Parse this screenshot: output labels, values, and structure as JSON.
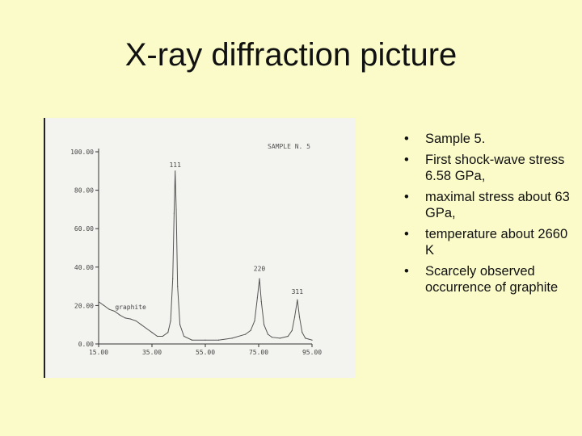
{
  "slide": {
    "title": "X-ray diffraction picture"
  },
  "bullets": [
    "Sample 5.",
    "First shock-wave stress 6.58 GPa,",
    "maximal stress about 63 GPa,",
    "temperature about 2660 K",
    "Scarcely observed occurrence of graphite"
  ],
  "chart_data": {
    "type": "line",
    "title": "",
    "xlabel": "",
    "ylabel": "",
    "xlim": [
      15,
      95
    ],
    "ylim": [
      0,
      100
    ],
    "x_ticks": [
      "15.00",
      "35.00",
      "55.00",
      "75.00",
      "95.00"
    ],
    "x_tick_values": [
      15,
      35,
      55,
      75,
      95
    ],
    "y_ticks": [
      "0.00",
      "20.00",
      "40.00",
      "60.00",
      "80.00",
      "100.00"
    ],
    "y_tick_values": [
      0,
      20,
      40,
      60,
      80,
      100
    ],
    "sample_label": "SAMPLE N. 5",
    "annotations": [
      {
        "text": "111",
        "x": 43.7,
        "y": 90
      },
      {
        "text": "220",
        "x": 75.3,
        "y": 36
      },
      {
        "text": "311",
        "x": 89.5,
        "y": 24
      },
      {
        "text": "graphite",
        "x": 27,
        "y": 18
      }
    ],
    "series": [
      {
        "x": [
          15,
          17,
          19,
          21,
          23,
          25,
          27,
          29,
          31,
          33,
          35,
          37,
          39,
          41,
          42,
          42.8,
          43.3,
          43.7,
          44.1,
          44.6,
          45.5,
          47,
          50,
          55,
          60,
          65,
          70,
          72,
          73.5,
          74.5,
          75.3,
          76,
          77,
          78.5,
          80,
          83,
          86,
          87.5,
          88.5,
          89.5,
          90.3,
          91.3,
          92.5,
          95
        ],
        "y": [
          22,
          20,
          18,
          17,
          15,
          13.5,
          13,
          12,
          10,
          8,
          6,
          4,
          4,
          6,
          12,
          34,
          68,
          90,
          70,
          30,
          10,
          4,
          2,
          2,
          2,
          3,
          5,
          7,
          12,
          24,
          34,
          22,
          10,
          5,
          3.5,
          3,
          4,
          7,
          14,
          23,
          14,
          6,
          3,
          2
        ]
      }
    ]
  }
}
